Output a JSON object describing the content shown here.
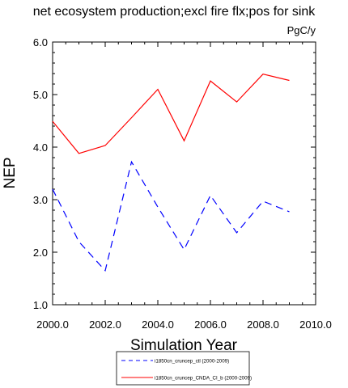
{
  "chart_data": {
    "type": "line",
    "title": "net ecosystem production;excl fire flx;pos for sink",
    "units": "PgC/y",
    "xlabel": "Simulation Year",
    "ylabel": "NEP",
    "xlim": [
      2000,
      2010
    ],
    "ylim": [
      1.0,
      6.0
    ],
    "x_ticks": [
      "2000.0",
      "2002.0",
      "2004.0",
      "2006.0",
      "2008.0",
      "2010.0"
    ],
    "y_ticks": [
      "1.0",
      "2.0",
      "3.0",
      "4.0",
      "5.0",
      "6.0"
    ],
    "grid": false,
    "legend_position": "bottom-center",
    "x": [
      2000,
      2001,
      2002,
      2003,
      2004,
      2005,
      2006,
      2007,
      2008,
      2009
    ],
    "series": [
      {
        "name": "i1850cn_cruncep_ctl (2000-2009)",
        "color": "#0000ff",
        "style": "dashed",
        "values": [
          3.2,
          2.2,
          1.65,
          3.72,
          2.86,
          2.05,
          3.08,
          2.37,
          2.97,
          2.77
        ]
      },
      {
        "name": "i1850cn_cruncep_CNDA_CI_b (2000-2009)",
        "color": "#ff0000",
        "style": "solid",
        "values": [
          4.49,
          3.88,
          4.03,
          4.56,
          5.1,
          4.12,
          5.26,
          4.86,
          5.39,
          5.27
        ]
      }
    ]
  }
}
